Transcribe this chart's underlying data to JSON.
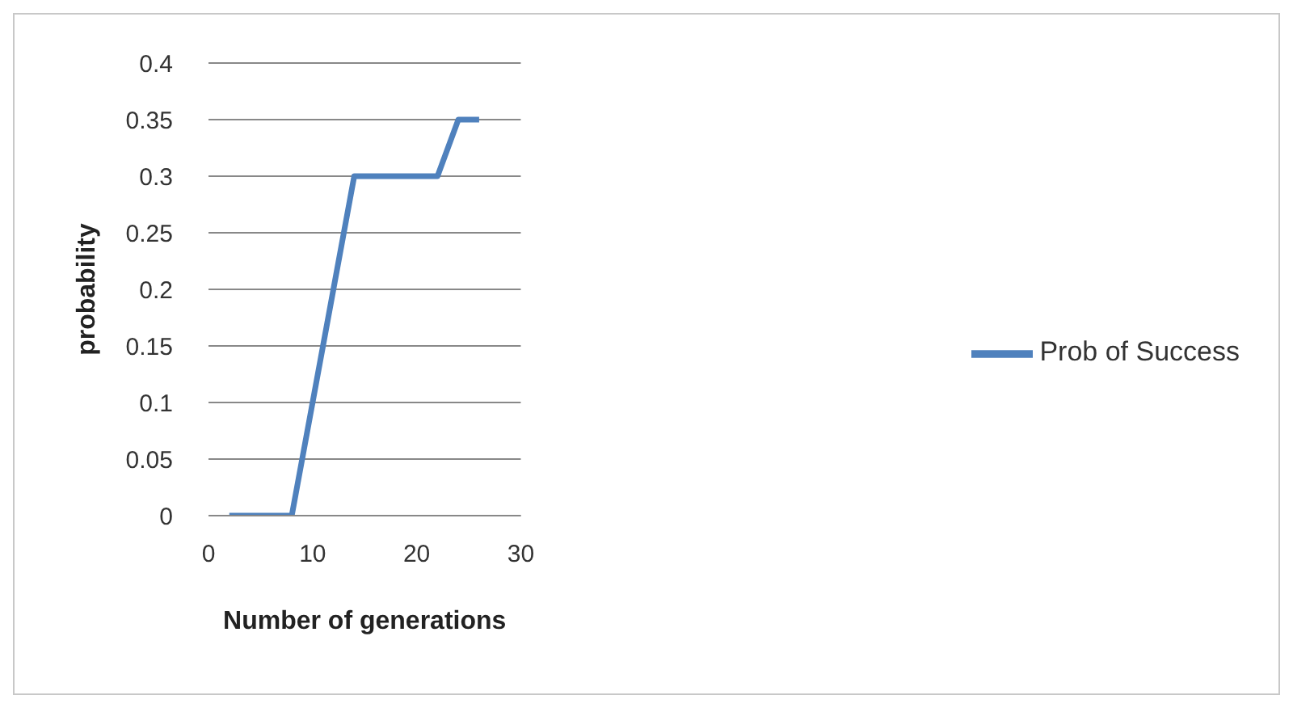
{
  "chart_data": {
    "type": "line",
    "xlabel": "Number of generations",
    "ylabel": "probability",
    "x": [
      2,
      4,
      6,
      8,
      10,
      12,
      14,
      16,
      18,
      20,
      22,
      24,
      26
    ],
    "series": [
      {
        "name": "Prob of Success",
        "color": "#4f81bd",
        "values": [
          0,
          0,
          0,
          0,
          0.1,
          0.2,
          0.3,
          0.3,
          0.3,
          0.3,
          0.3,
          0.35,
          0.35
        ]
      }
    ],
    "xlim": [
      0,
      30
    ],
    "xticks": [
      0,
      10,
      20,
      30
    ],
    "ylim": [
      0,
      0.4
    ],
    "yticks": [
      0,
      0.05,
      0.1,
      0.15,
      0.2,
      0.25,
      0.3,
      0.35,
      0.4
    ],
    "grid": "y",
    "legend": "right",
    "marker": "none",
    "line_style": "solid"
  }
}
